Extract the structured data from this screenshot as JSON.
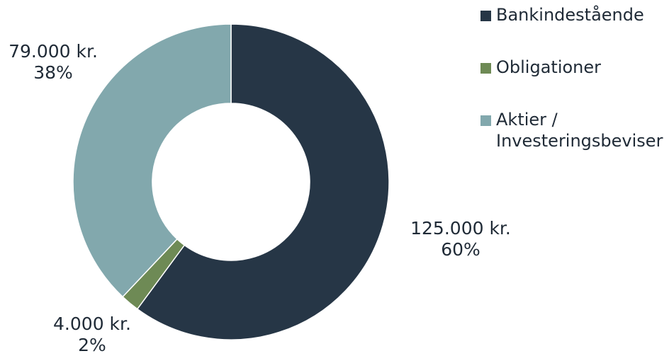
{
  "chart_data": {
    "type": "pie",
    "donut": true,
    "categories": [
      "Bankindestående",
      "Obligationer",
      "Aktier / Investeringsbeviser"
    ],
    "values": [
      125000,
      4000,
      79000
    ],
    "value_labels": [
      "125.000 kr.",
      "4.000 kr.",
      "79.000 kr."
    ],
    "percent_labels": [
      "60%",
      "2%",
      "38%"
    ],
    "colors": [
      "#263646",
      "#6e8a55",
      "#82a8ad"
    ],
    "legend_lines": [
      [
        "Bankindestående"
      ],
      [
        "Obligationer"
      ],
      [
        "Aktier /",
        "Investeringsbeviser"
      ]
    ],
    "legend_position": "right",
    "title": ""
  }
}
